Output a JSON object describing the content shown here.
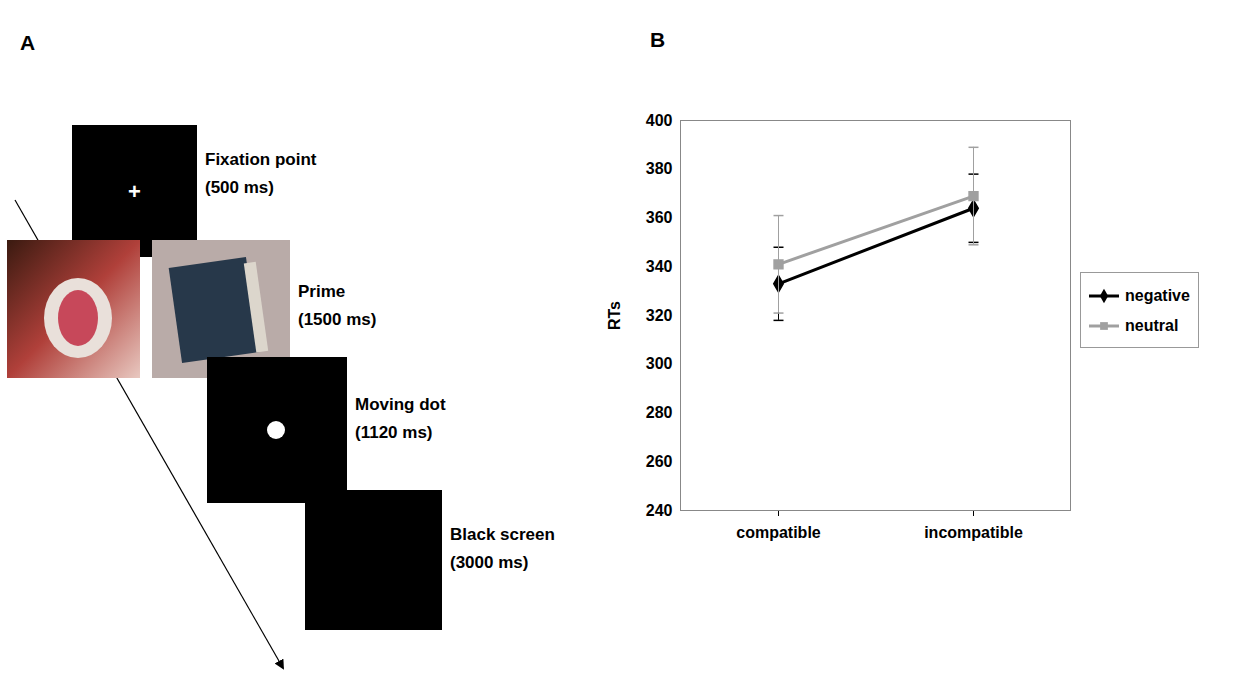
{
  "panel_a": {
    "letter": "A",
    "steps": [
      {
        "label": "Fixation point",
        "duration": "(500 ms)",
        "screen": "+"
      },
      {
        "label": "Prime",
        "duration": "(1500 ms)"
      },
      {
        "label": "Moving dot",
        "duration": "(1120 ms)"
      },
      {
        "label": "Black screen",
        "duration": "(3000 ms)"
      }
    ]
  },
  "chart_data": {
    "panel": "B",
    "type": "line",
    "categories": [
      "compatible",
      "incompatible"
    ],
    "y_label": "RTs",
    "ylim": [
      240,
      400
    ],
    "yticks": [
      240,
      260,
      280,
      300,
      320,
      340,
      360,
      380,
      400
    ],
    "legend": "right",
    "series": [
      {
        "name": "negative",
        "color": "#000000",
        "marker": "diamond",
        "values": [
          333,
          364
        ],
        "errors": [
          15,
          14
        ]
      },
      {
        "name": "neutral",
        "color": "#a0a0a0",
        "marker": "square",
        "values": [
          341,
          369
        ],
        "errors": [
          20,
          20
        ]
      }
    ]
  }
}
